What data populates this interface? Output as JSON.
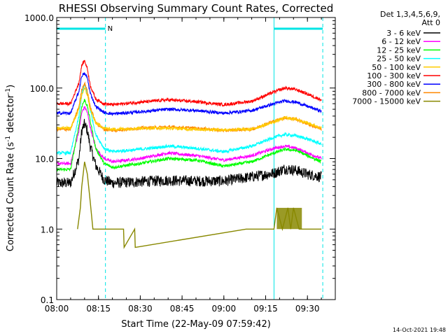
{
  "chart_data": {
    "type": "line",
    "title": "RHESSI Observing Summary Count Rates, Corrected",
    "xlabel": "Start Time (22-May-09 07:59:42)",
    "ylabel_main": "Corrected Count Rate (s",
    "ylabel_sup1": "-1",
    "ylabel_mid": " detector",
    "ylabel_sup2": "-1",
    "ylabel_end": ")",
    "yscale": "log",
    "ylim": [
      0.1,
      1000
    ],
    "xlim_minutes": [
      0,
      100
    ],
    "x_ticks": [
      {
        "m": 0,
        "label": "08:00"
      },
      {
        "m": 15,
        "label": "08:15"
      },
      {
        "m": 30,
        "label": "08:30"
      },
      {
        "m": 45,
        "label": "08:45"
      },
      {
        "m": 60,
        "label": "09:00"
      },
      {
        "m": 75,
        "label": "09:15"
      },
      {
        "m": 90,
        "label": "09:30"
      }
    ],
    "y_ticks": [
      {
        "v": 1000,
        "label": "1000.0"
      },
      {
        "v": 100,
        "label": "100.0"
      },
      {
        "v": 10,
        "label": "10.0"
      },
      {
        "v": 1,
        "label": "1.0"
      },
      {
        "v": 0.1,
        "label": "0.1"
      }
    ],
    "legend_title_1": "Det 1,3,4,5,6,9,",
    "legend_title_2": "Att 0",
    "legend_position": "right",
    "night_label": "N",
    "night_intervals_minutes": [
      [
        0,
        17.5
      ],
      [
        78,
        95.5
      ]
    ],
    "series": [
      {
        "name": "3 - 6 keV",
        "color": "#000000",
        "x": [
          0,
          5,
          8,
          9,
          10,
          11,
          12,
          14,
          17,
          20,
          30,
          40,
          50,
          60,
          70,
          78,
          82,
          86,
          90,
          95
        ],
        "y": [
          4.5,
          4.5,
          10,
          25,
          31,
          25,
          15,
          8,
          5,
          4.5,
          4.7,
          4.9,
          4.8,
          4.8,
          5.5,
          6.2,
          7.2,
          6.8,
          6,
          5.5
        ]
      },
      {
        "name": "6 - 12 keV",
        "color": "#ff00ff",
        "x": [
          0,
          5,
          8,
          9,
          10,
          11,
          12,
          14,
          17,
          20,
          30,
          40,
          50,
          60,
          70,
          78,
          82,
          86,
          90,
          95
        ],
        "y": [
          8.5,
          8.5,
          25,
          45,
          54,
          45,
          28,
          14,
          10,
          9,
          10,
          12,
          11,
          9.5,
          11,
          14,
          15,
          14,
          12,
          10
        ]
      },
      {
        "name": "12 - 25 keV",
        "color": "#00ff00",
        "x": [
          0,
          5,
          8,
          9,
          10,
          11,
          12,
          14,
          17,
          20,
          30,
          40,
          50,
          60,
          70,
          78,
          82,
          86,
          90,
          95
        ],
        "y": [
          7,
          7,
          30,
          55,
          68,
          55,
          35,
          14,
          8.5,
          7.5,
          8.5,
          10,
          9.5,
          7.8,
          9,
          12,
          13.5,
          13,
          11,
          9
        ]
      },
      {
        "name": "25 - 50 keV",
        "color": "#00ffff",
        "x": [
          0,
          5,
          8,
          9,
          10,
          11,
          12,
          14,
          17,
          20,
          30,
          40,
          50,
          60,
          70,
          78,
          82,
          86,
          90,
          95
        ],
        "y": [
          12,
          12,
          40,
          80,
          112,
          85,
          50,
          22,
          14,
          12.5,
          13.5,
          15,
          14,
          12.5,
          15,
          20,
          22,
          21,
          19,
          16
        ]
      },
      {
        "name": "50 - 100 keV",
        "color": "#ffcc00",
        "x": [
          0,
          5,
          8,
          9,
          10,
          11,
          12,
          14,
          17,
          20,
          30,
          40,
          50,
          60,
          70,
          78,
          82,
          86,
          90,
          95
        ],
        "y": [
          27,
          27,
          50,
          80,
          100,
          80,
          50,
          32,
          27,
          26,
          27,
          27,
          26,
          25.5,
          26,
          33,
          38,
          36,
          32,
          27
        ]
      },
      {
        "name": "100 - 300 keV",
        "color": "#ff0000",
        "x": [
          0,
          5,
          8,
          9,
          10,
          11,
          12,
          14,
          17,
          20,
          30,
          40,
          50,
          60,
          70,
          78,
          82,
          86,
          90,
          95
        ],
        "y": [
          60,
          60,
          120,
          210,
          245,
          190,
          110,
          70,
          60,
          58,
          63,
          68,
          64,
          58,
          65,
          88,
          100,
          95,
          82,
          68
        ]
      },
      {
        "name": "300 - 800 keV",
        "color": "#0000ff",
        "x": [
          0,
          5,
          8,
          9,
          10,
          11,
          12,
          14,
          17,
          20,
          30,
          40,
          50,
          60,
          70,
          78,
          82,
          86,
          90,
          95
        ],
        "y": [
          44,
          44,
          90,
          150,
          160,
          140,
          85,
          55,
          45,
          43,
          46,
          50,
          48,
          44,
          48,
          60,
          66,
          63,
          55,
          47
        ]
      },
      {
        "name": "800 - 7000 keV",
        "color": "#ff8800",
        "x": [
          0,
          5,
          8,
          9,
          10,
          11,
          12,
          14,
          17,
          20,
          30,
          40,
          50,
          60,
          70,
          78,
          82,
          86,
          90,
          95
        ],
        "y": [
          26,
          26,
          55,
          95,
          118,
          90,
          55,
          32,
          26,
          25,
          27,
          28,
          27,
          25,
          26,
          34,
          38,
          36,
          31,
          26
        ]
      },
      {
        "name": "7000 - 15000 keV",
        "color": "#888800",
        "x": [
          7.5,
          8.5,
          9,
          10,
          11,
          12,
          13,
          14,
          24,
          24.2,
          28,
          28.2,
          68,
          70,
          72,
          75,
          76,
          78,
          79,
          81,
          83,
          84,
          85,
          87,
          88,
          95
        ],
        "y": [
          1,
          2,
          4,
          9,
          6,
          2.5,
          1,
          1,
          1,
          0.55,
          1,
          0.55,
          1,
          1,
          1,
          1,
          1,
          1,
          2,
          1,
          2,
          1,
          2,
          1,
          1,
          1
        ]
      }
    ]
  },
  "timestamp": "14-Oct-2021 19:48"
}
